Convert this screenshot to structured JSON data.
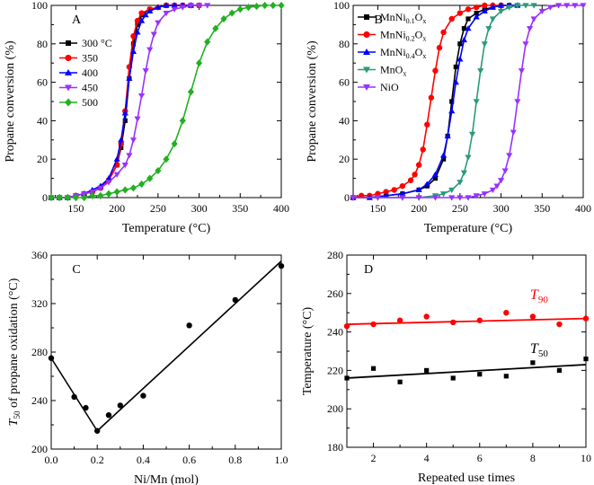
{
  "chart_data": [
    {
      "panel": "A",
      "type": "line",
      "xlabel": "Temperature (°C)",
      "ylabel": "Propane conversion (%)",
      "xlim": [
        120,
        400
      ],
      "ylim": [
        0,
        100
      ],
      "xticks": [
        150,
        200,
        250,
        300,
        350,
        400
      ],
      "yticks": [
        0,
        20,
        40,
        60,
        80,
        100
      ],
      "legend_position": "left",
      "series": [
        {
          "name": "300 °C",
          "color": "#000000",
          "marker": "square",
          "x": [
            120,
            130,
            140,
            150,
            160,
            170,
            180,
            190,
            200,
            205,
            210,
            215,
            220,
            225,
            230,
            240,
            250,
            260,
            270,
            280,
            290,
            300
          ],
          "y": [
            0,
            0,
            0,
            1,
            2,
            3,
            5,
            9,
            17,
            26,
            40,
            62,
            80,
            90,
            95,
            98,
            99,
            100,
            100,
            100,
            100,
            100
          ]
        },
        {
          "name": "350",
          "color": "#ff0000",
          "marker": "circle",
          "x": [
            120,
            130,
            140,
            150,
            160,
            170,
            180,
            190,
            200,
            205,
            210,
            215,
            220,
            225,
            230,
            240,
            250,
            260,
            270,
            280,
            290,
            300
          ],
          "y": [
            0,
            0,
            0,
            1,
            2,
            3,
            5,
            9,
            17,
            28,
            45,
            68,
            84,
            92,
            96,
            98,
            99,
            100,
            100,
            100,
            100,
            100
          ]
        },
        {
          "name": "400",
          "color": "#0000ff",
          "marker": "triangle-up",
          "x": [
            120,
            130,
            140,
            150,
            160,
            170,
            180,
            190,
            200,
            205,
            210,
            215,
            220,
            225,
            230,
            235,
            240,
            250,
            260,
            270,
            280,
            290
          ],
          "y": [
            0,
            0,
            0,
            1,
            2,
            4,
            6,
            10,
            20,
            30,
            44,
            62,
            76,
            86,
            92,
            95,
            97,
            99,
            100,
            100,
            100,
            100
          ]
        },
        {
          "name": "450",
          "color": "#9932ff",
          "marker": "triangle-down",
          "x": [
            120,
            130,
            140,
            150,
            160,
            170,
            180,
            190,
            200,
            210,
            215,
            220,
            225,
            230,
            235,
            240,
            245,
            250,
            260,
            270,
            280,
            290,
            300,
            310
          ],
          "y": [
            0,
            0,
            0,
            1,
            2,
            3,
            5,
            8,
            12,
            17,
            22,
            30,
            41,
            53,
            66,
            77,
            85,
            91,
            96,
            98,
            99,
            100,
            100,
            100
          ]
        },
        {
          "name": "500",
          "color": "#22b022",
          "marker": "diamond",
          "x": [
            120,
            130,
            140,
            150,
            160,
            170,
            180,
            190,
            200,
            210,
            220,
            230,
            240,
            250,
            260,
            270,
            280,
            290,
            300,
            310,
            320,
            330,
            340,
            350,
            360,
            370,
            380,
            390,
            400
          ],
          "y": [
            0,
            0,
            0,
            0,
            0,
            1,
            1,
            2,
            3,
            4,
            5,
            7,
            10,
            14,
            20,
            28,
            40,
            55,
            70,
            81,
            88,
            93,
            96,
            98,
            99,
            99.5,
            100,
            100,
            100
          ]
        }
      ]
    },
    {
      "panel": "B",
      "type": "line",
      "xlabel": "Temperature (°C)",
      "ylabel": "Propane conversion (%)",
      "xlim": [
        120,
        400
      ],
      "ylim": [
        0,
        100
      ],
      "xticks": [
        150,
        200,
        250,
        300,
        350,
        400
      ],
      "yticks": [
        0,
        20,
        40,
        60,
        80,
        100
      ],
      "legend_position": "left",
      "series": [
        {
          "name": "MnNi",
          "sub1": "0.1",
          "mid": "O",
          "sub2": "x",
          "color": "#000000",
          "marker": "square",
          "x": [
            120,
            140,
            160,
            180,
            200,
            210,
            220,
            230,
            235,
            240,
            245,
            250,
            255,
            260,
            270,
            280,
            290,
            300,
            310,
            320
          ],
          "y": [
            0,
            0,
            1,
            2,
            4,
            6,
            10,
            20,
            32,
            50,
            68,
            80,
            88,
            93,
            96,
            98,
            99,
            100,
            100,
            100
          ]
        },
        {
          "name": "MnNi",
          "sub1": "0.2",
          "mid": "O",
          "sub2": "x",
          "color": "#ff0000",
          "marker": "circle",
          "x": [
            120,
            130,
            140,
            150,
            160,
            170,
            180,
            190,
            195,
            200,
            205,
            210,
            215,
            220,
            225,
            230,
            240,
            250,
            260,
            270,
            280,
            290,
            300
          ],
          "y": [
            0,
            1,
            1,
            2,
            3,
            4,
            6,
            9,
            12,
            17,
            25,
            38,
            52,
            66,
            78,
            86,
            93,
            96,
            98,
            99,
            100,
            100,
            100
          ]
        },
        {
          "name": "MnNi",
          "sub1": "0.4",
          "mid": "O",
          "sub2": "x",
          "color": "#0000ff",
          "marker": "triangle-up",
          "x": [
            120,
            140,
            160,
            180,
            200,
            210,
            220,
            230,
            235,
            240,
            245,
            250,
            255,
            260,
            270,
            280,
            290,
            300,
            310,
            320
          ],
          "y": [
            0,
            0,
            1,
            2,
            4,
            7,
            12,
            22,
            32,
            45,
            60,
            72,
            82,
            88,
            94,
            97,
            99,
            100,
            100,
            100
          ]
        },
        {
          "name": "MnO",
          "sub1": "",
          "mid": "",
          "sub2": "x",
          "color": "#2a9a7a",
          "marker": "triangle-down",
          "x": [
            120,
            150,
            180,
            200,
            220,
            230,
            240,
            250,
            255,
            260,
            265,
            270,
            275,
            280,
            285,
            290,
            300,
            310,
            320,
            330,
            340
          ],
          "y": [
            0,
            0,
            0,
            0,
            1,
            2,
            4,
            8,
            13,
            21,
            33,
            50,
            66,
            80,
            88,
            93,
            97,
            99,
            100,
            100,
            100
          ]
        },
        {
          "name": "NiO",
          "sub1": "",
          "mid": "",
          "sub2": "",
          "color": "#9932ff",
          "marker": "triangle-down",
          "x": [
            120,
            150,
            180,
            200,
            220,
            240,
            250,
            260,
            270,
            280,
            290,
            295,
            300,
            305,
            310,
            315,
            320,
            325,
            330,
            335,
            340,
            350,
            360,
            370,
            380,
            390,
            400
          ],
          "y": [
            0,
            0,
            0,
            0,
            0,
            0,
            0,
            0,
            1,
            2,
            4,
            6,
            9,
            14,
            22,
            34,
            50,
            66,
            80,
            88,
            93,
            97,
            99,
            100,
            100,
            100,
            100
          ]
        }
      ]
    },
    {
      "panel": "C",
      "type": "scatter",
      "xlabel": "Ni/Mn (mol)",
      "ylabel_pre": "T",
      "ylabel_sub": "50",
      "ylabel_post": " of propane oxidation (°C)",
      "xlim": [
        0,
        1.0
      ],
      "ylim": [
        200,
        360
      ],
      "xticks": [
        "0.0",
        "0.2",
        "0.4",
        "0.6",
        "0.8",
        "1.0"
      ],
      "yticks": [
        200,
        240,
        280,
        320,
        360
      ],
      "points": {
        "x": [
          0.0,
          0.1,
          0.15,
          0.2,
          0.25,
          0.3,
          0.4,
          0.6,
          0.8,
          1.0
        ],
        "y": [
          275,
          243,
          234,
          215,
          228,
          236,
          244,
          302,
          323,
          351
        ]
      },
      "fit_lines": [
        {
          "x": [
            0.0,
            0.2
          ],
          "y": [
            275,
            215
          ]
        },
        {
          "x": [
            0.2,
            1.0
          ],
          "y": [
            215,
            355
          ]
        }
      ]
    },
    {
      "panel": "D",
      "type": "scatter",
      "xlabel": "Repeated use times",
      "ylabel": "Temperature (°C)",
      "xlim": [
        1,
        10
      ],
      "ylim": [
        180,
        280
      ],
      "xticks": [
        2,
        4,
        6,
        8,
        10
      ],
      "yticks": [
        180,
        200,
        220,
        240,
        260,
        280
      ],
      "series": [
        {
          "name": "T",
          "sub": "90",
          "color": "#ff0000",
          "marker": "circle",
          "x": [
            1,
            2,
            3,
            4,
            5,
            6,
            7,
            8,
            9,
            10
          ],
          "y": [
            243,
            244,
            246,
            248,
            245,
            246,
            250,
            248,
            244,
            247
          ],
          "fit": {
            "x": [
              1,
              10
            ],
            "y": [
              244,
              247
            ]
          }
        },
        {
          "name": "T",
          "sub": "50",
          "color": "#000000",
          "marker": "square",
          "x": [
            1,
            2,
            3,
            4,
            5,
            6,
            7,
            8,
            9,
            10
          ],
          "y": [
            216,
            221,
            214,
            220,
            216,
            218,
            217,
            224,
            220,
            226
          ],
          "fit": {
            "x": [
              1,
              10
            ],
            "y": [
              216,
              223
            ]
          }
        }
      ]
    }
  ]
}
